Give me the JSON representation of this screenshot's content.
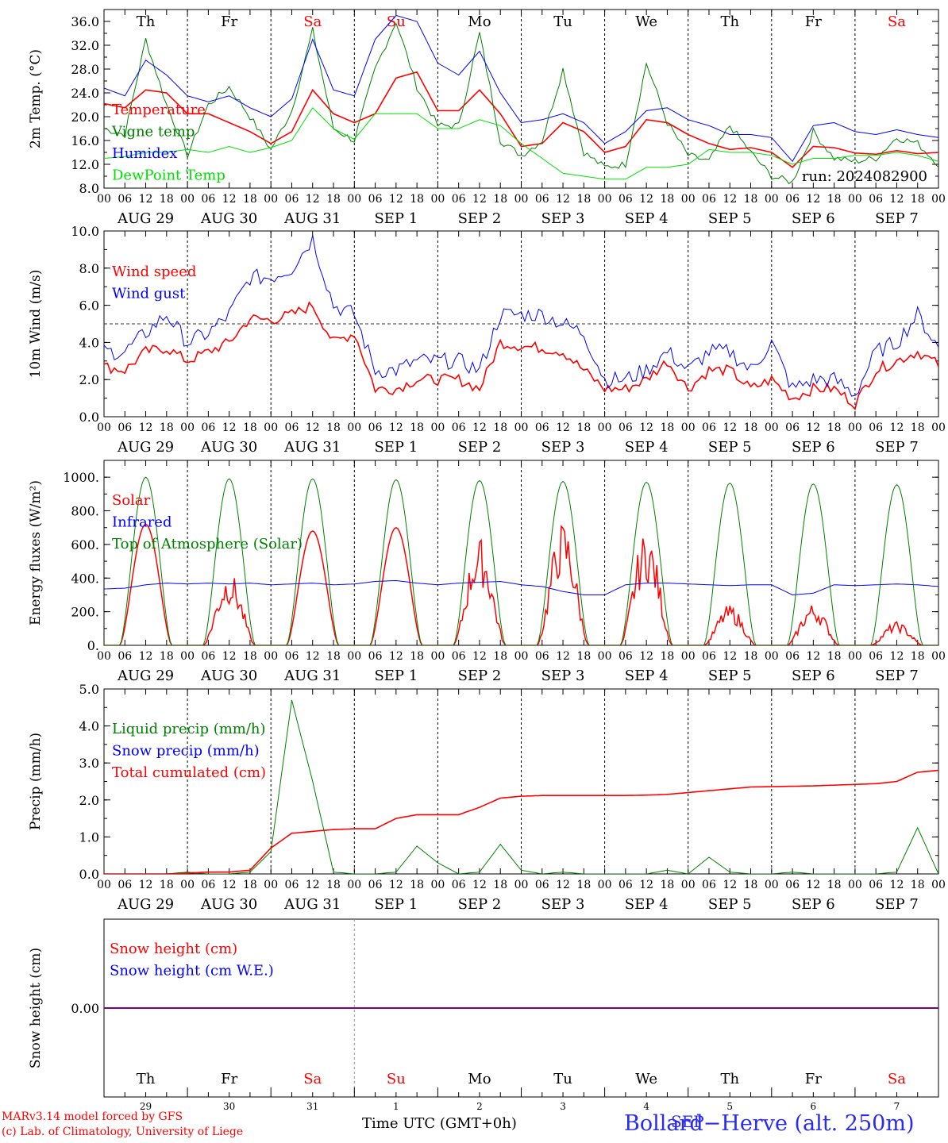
{
  "colors": {
    "red": "#ff0000",
    "green": "#008000",
    "blue": "#0000ff",
    "lightgreen": "#00e000",
    "purple": "#800080"
  },
  "days": [
    {
      "dow": "Th",
      "date": "AUG 29",
      "num": "29",
      "weekend": false
    },
    {
      "dow": "Fr",
      "date": "AUG 30",
      "num": "30",
      "weekend": false
    },
    {
      "dow": "Sa",
      "date": "AUG 31",
      "num": "31",
      "weekend": true
    },
    {
      "dow": "Su",
      "date": "SEP  1",
      "num": "1",
      "weekend": true
    },
    {
      "dow": "Mo",
      "date": "SEP  2",
      "num": "2",
      "weekend": false
    },
    {
      "dow": "Tu",
      "date": "SEP  3",
      "num": "3",
      "weekend": false
    },
    {
      "dow": "We",
      "date": "SEP  4",
      "num": "4",
      "weekend": false
    },
    {
      "dow": "Th",
      "date": "SEP  5",
      "num": "5",
      "weekend": false
    },
    {
      "dow": "Fr",
      "date": "SEP  6",
      "num": "6",
      "weekend": false
    },
    {
      "dow": "Sa",
      "date": "SEP  7",
      "num": "7",
      "weekend": true
    }
  ],
  "hour_ticks": [
    "00",
    "06",
    "12",
    "18"
  ],
  "chart_data": [
    {
      "type": "line",
      "ylabel": "2m Temp. (°C)",
      "ylim": [
        8,
        38
      ],
      "yticks": [
        "8.0",
        "12.0",
        "16.0",
        "20.0",
        "24.0",
        "28.0",
        "32.0",
        "36.0"
      ],
      "annotation": "run: 2024082900",
      "x_hours": [
        0,
        6,
        12,
        18,
        24,
        30,
        36,
        42,
        48,
        54,
        60,
        66,
        72,
        78,
        84,
        90,
        96,
        102,
        108,
        114,
        120,
        126,
        132,
        138,
        144,
        150,
        156,
        162,
        168,
        174,
        180,
        186,
        192,
        198,
        204,
        210,
        216,
        222,
        228,
        234,
        240
      ],
      "series": [
        {
          "name": "Temperature",
          "color": "red",
          "values": [
            22.2,
            21.5,
            24.5,
            24.0,
            20.5,
            20.5,
            19.0,
            17.5,
            15.5,
            17.5,
            24.5,
            20.5,
            19.0,
            20.5,
            26.5,
            27.5,
            21.0,
            21.0,
            24.5,
            20.5,
            15.0,
            15.5,
            19.0,
            17.5,
            14.0,
            15.0,
            19.5,
            19.0,
            17.0,
            15.5,
            14.5,
            14.8,
            14.0,
            11.5,
            15.0,
            14.8,
            13.9,
            13.7,
            14.3,
            13.8,
            14.0
          ]
        },
        {
          "name": "Vigne temp",
          "color": "green",
          "values": [
            18.0,
            17.0,
            33.0,
            22.0,
            13.5,
            22.0,
            25.0,
            20.0,
            14.5,
            21.0,
            34.5,
            18.0,
            16.0,
            28.0,
            36.0,
            25.0,
            18.5,
            18.5,
            34.0,
            16.0,
            13.5,
            16.0,
            28.0,
            14.0,
            11.5,
            12.0,
            29.0,
            19.0,
            13.5,
            12.5,
            18.5,
            14.0,
            10.0,
            9.0,
            17.5,
            13.0,
            12.5,
            13.0,
            16.5,
            15.5,
            12.0
          ]
        },
        {
          "name": "Humidex",
          "color": "blue",
          "values": [
            24.8,
            23.5,
            29.5,
            27.0,
            23.5,
            22.5,
            23.5,
            21.5,
            20.0,
            23.0,
            33.0,
            24.5,
            23.5,
            33.0,
            37.0,
            36.0,
            29.0,
            27.0,
            31.0,
            24.0,
            19.0,
            19.5,
            20.5,
            19.0,
            15.5,
            17.5,
            21.0,
            21.5,
            19.5,
            18.5,
            17.0,
            17.0,
            16.5,
            12.5,
            18.5,
            19.0,
            17.5,
            17.0,
            17.8,
            17.0,
            16.5
          ]
        },
        {
          "name": "DewPoint Temp",
          "color": "lightgreen",
          "values": [
            13.0,
            13.3,
            14.0,
            14.0,
            14.5,
            14.0,
            15.0,
            14.0,
            14.8,
            16.0,
            21.5,
            18.0,
            16.2,
            20.5,
            20.5,
            20.5,
            18.0,
            18.0,
            19.5,
            18.5,
            15.5,
            13.0,
            10.5,
            10.0,
            9.5,
            9.5,
            11.5,
            11.5,
            12.0,
            14.5,
            14.0,
            14.0,
            13.5,
            12.0,
            13.0,
            13.0,
            13.5,
            13.5,
            14.0,
            13.5,
            12.5
          ]
        }
      ]
    },
    {
      "type": "line",
      "ylabel": "10m Wind (m/s)",
      "ylim": [
        0,
        10
      ],
      "yticks": [
        "0.0",
        "2.0",
        "4.0",
        "6.0",
        "8.0",
        "10.0"
      ],
      "reference_line": 5.0,
      "x_hours": [
        0,
        6,
        12,
        18,
        24,
        30,
        36,
        42,
        48,
        54,
        60,
        66,
        72,
        78,
        84,
        90,
        96,
        102,
        108,
        114,
        120,
        126,
        132,
        138,
        144,
        150,
        156,
        162,
        168,
        174,
        180,
        186,
        192,
        198,
        204,
        210,
        216,
        222,
        228,
        234,
        240
      ],
      "series": [
        {
          "name": "Wind speed",
          "color": "red",
          "values": [
            2.7,
            2.5,
            3.5,
            3.7,
            3.0,
            3.5,
            4.0,
            5.3,
            5.2,
            5.5,
            6.0,
            4.0,
            4.5,
            1.5,
            1.5,
            2.0,
            2.0,
            2.0,
            1.5,
            4.0,
            3.8,
            3.7,
            3.5,
            2.5,
            1.5,
            1.5,
            2.0,
            3.0,
            1.5,
            2.5,
            2.5,
            1.5,
            2.0,
            1.0,
            1.5,
            1.5,
            0.7,
            2.5,
            3.0,
            3.5,
            2.8
          ]
        },
        {
          "name": "Wind gust",
          "color": "blue",
          "values": [
            3.5,
            3.5,
            4.5,
            5.5,
            4.0,
            4.5,
            5.5,
            7.5,
            7.5,
            8.0,
            9.6,
            6.0,
            5.5,
            2.5,
            2.5,
            3.0,
            3.0,
            3.0,
            2.5,
            5.5,
            5.5,
            5.5,
            5.0,
            4.5,
            2.0,
            2.0,
            2.5,
            3.5,
            2.5,
            3.5,
            3.5,
            2.5,
            4.0,
            1.5,
            2.0,
            2.0,
            1.2,
            3.5,
            4.0,
            5.5,
            3.7
          ]
        }
      ]
    },
    {
      "type": "line",
      "ylabel": "Energy fluxes (W/m²)",
      "ylim": [
        0,
        1100
      ],
      "yticks": [
        "0.",
        "200.",
        "400.",
        "600.",
        "800.",
        "1000."
      ],
      "series": [
        {
          "name": "Solar",
          "color": "red",
          "daily_peak": [
            720,
            440,
            680,
            700,
            640,
            740,
            680,
            240,
            250,
            140
          ]
        },
        {
          "name": "Infrared",
          "color": "blue",
          "values": [
            335,
            340,
            360,
            370,
            365,
            370,
            365,
            370,
            360,
            365,
            370,
            360,
            365,
            380,
            385,
            370,
            360,
            370,
            375,
            380,
            360,
            350,
            320,
            300,
            300,
            360,
            370,
            370,
            365,
            360,
            355,
            360,
            360,
            300,
            310,
            360,
            355,
            360,
            365,
            360,
            350
          ]
        },
        {
          "name": "Top of Atmosphere (Solar)",
          "color": "green",
          "daily_peak": [
            1000,
            990,
            990,
            985,
            980,
            975,
            970,
            965,
            960,
            955
          ]
        }
      ]
    },
    {
      "type": "line",
      "ylabel": "Precip (mm/h)",
      "ylim": [
        0,
        5
      ],
      "yticks": [
        "0.0",
        "1.0",
        "2.0",
        "3.0",
        "4.0",
        "5.0"
      ],
      "series": [
        {
          "name": "Liquid precip (mm/h)",
          "color": "green",
          "values": [
            0,
            0,
            0,
            0,
            0.05,
            0,
            0,
            0.05,
            0.6,
            4.7,
            2.5,
            0.05,
            0,
            0,
            0.05,
            0.75,
            0.3,
            0,
            0.05,
            0.8,
            0.1,
            0,
            0.05,
            0,
            0,
            0,
            0,
            0.1,
            0,
            0.45,
            0.05,
            0,
            0,
            0.05,
            0,
            0,
            0,
            0,
            0.05,
            1.25,
            0
          ]
        },
        {
          "name": "Snow precip (mm/h)",
          "color": "blue",
          "values": []
        },
        {
          "name": "Total cumulated (cm)",
          "color": "red",
          "values": [
            0,
            0,
            0,
            0,
            0.02,
            0.05,
            0.05,
            0.1,
            0.7,
            1.1,
            1.15,
            1.2,
            1.22,
            1.22,
            1.5,
            1.6,
            1.6,
            1.6,
            1.8,
            2.05,
            2.1,
            2.12,
            2.12,
            2.12,
            2.12,
            2.12,
            2.13,
            2.15,
            2.2,
            2.25,
            2.3,
            2.35,
            2.36,
            2.37,
            2.38,
            2.4,
            2.42,
            2.44,
            2.5,
            2.75,
            2.8
          ]
        }
      ]
    },
    {
      "type": "line",
      "ylabel": "Snow height (cm)",
      "yticks": [
        "0.00"
      ],
      "series": [
        {
          "name": "Snow height (cm)",
          "color": "red",
          "values": [
            0,
            0
          ]
        },
        {
          "name": "Snow height (cm W.E.)",
          "color": "blue",
          "values": [
            0,
            0
          ]
        }
      ]
    }
  ],
  "xlabel": "Time UTC (GMT+0h)",
  "bottom_month": "SEP",
  "location": "Bollard−Herve (alt. 250m)",
  "credit_1": "MARv3.14 model forced by GFS",
  "credit_2": "(c) Lab. of Climatology, University of Liege"
}
